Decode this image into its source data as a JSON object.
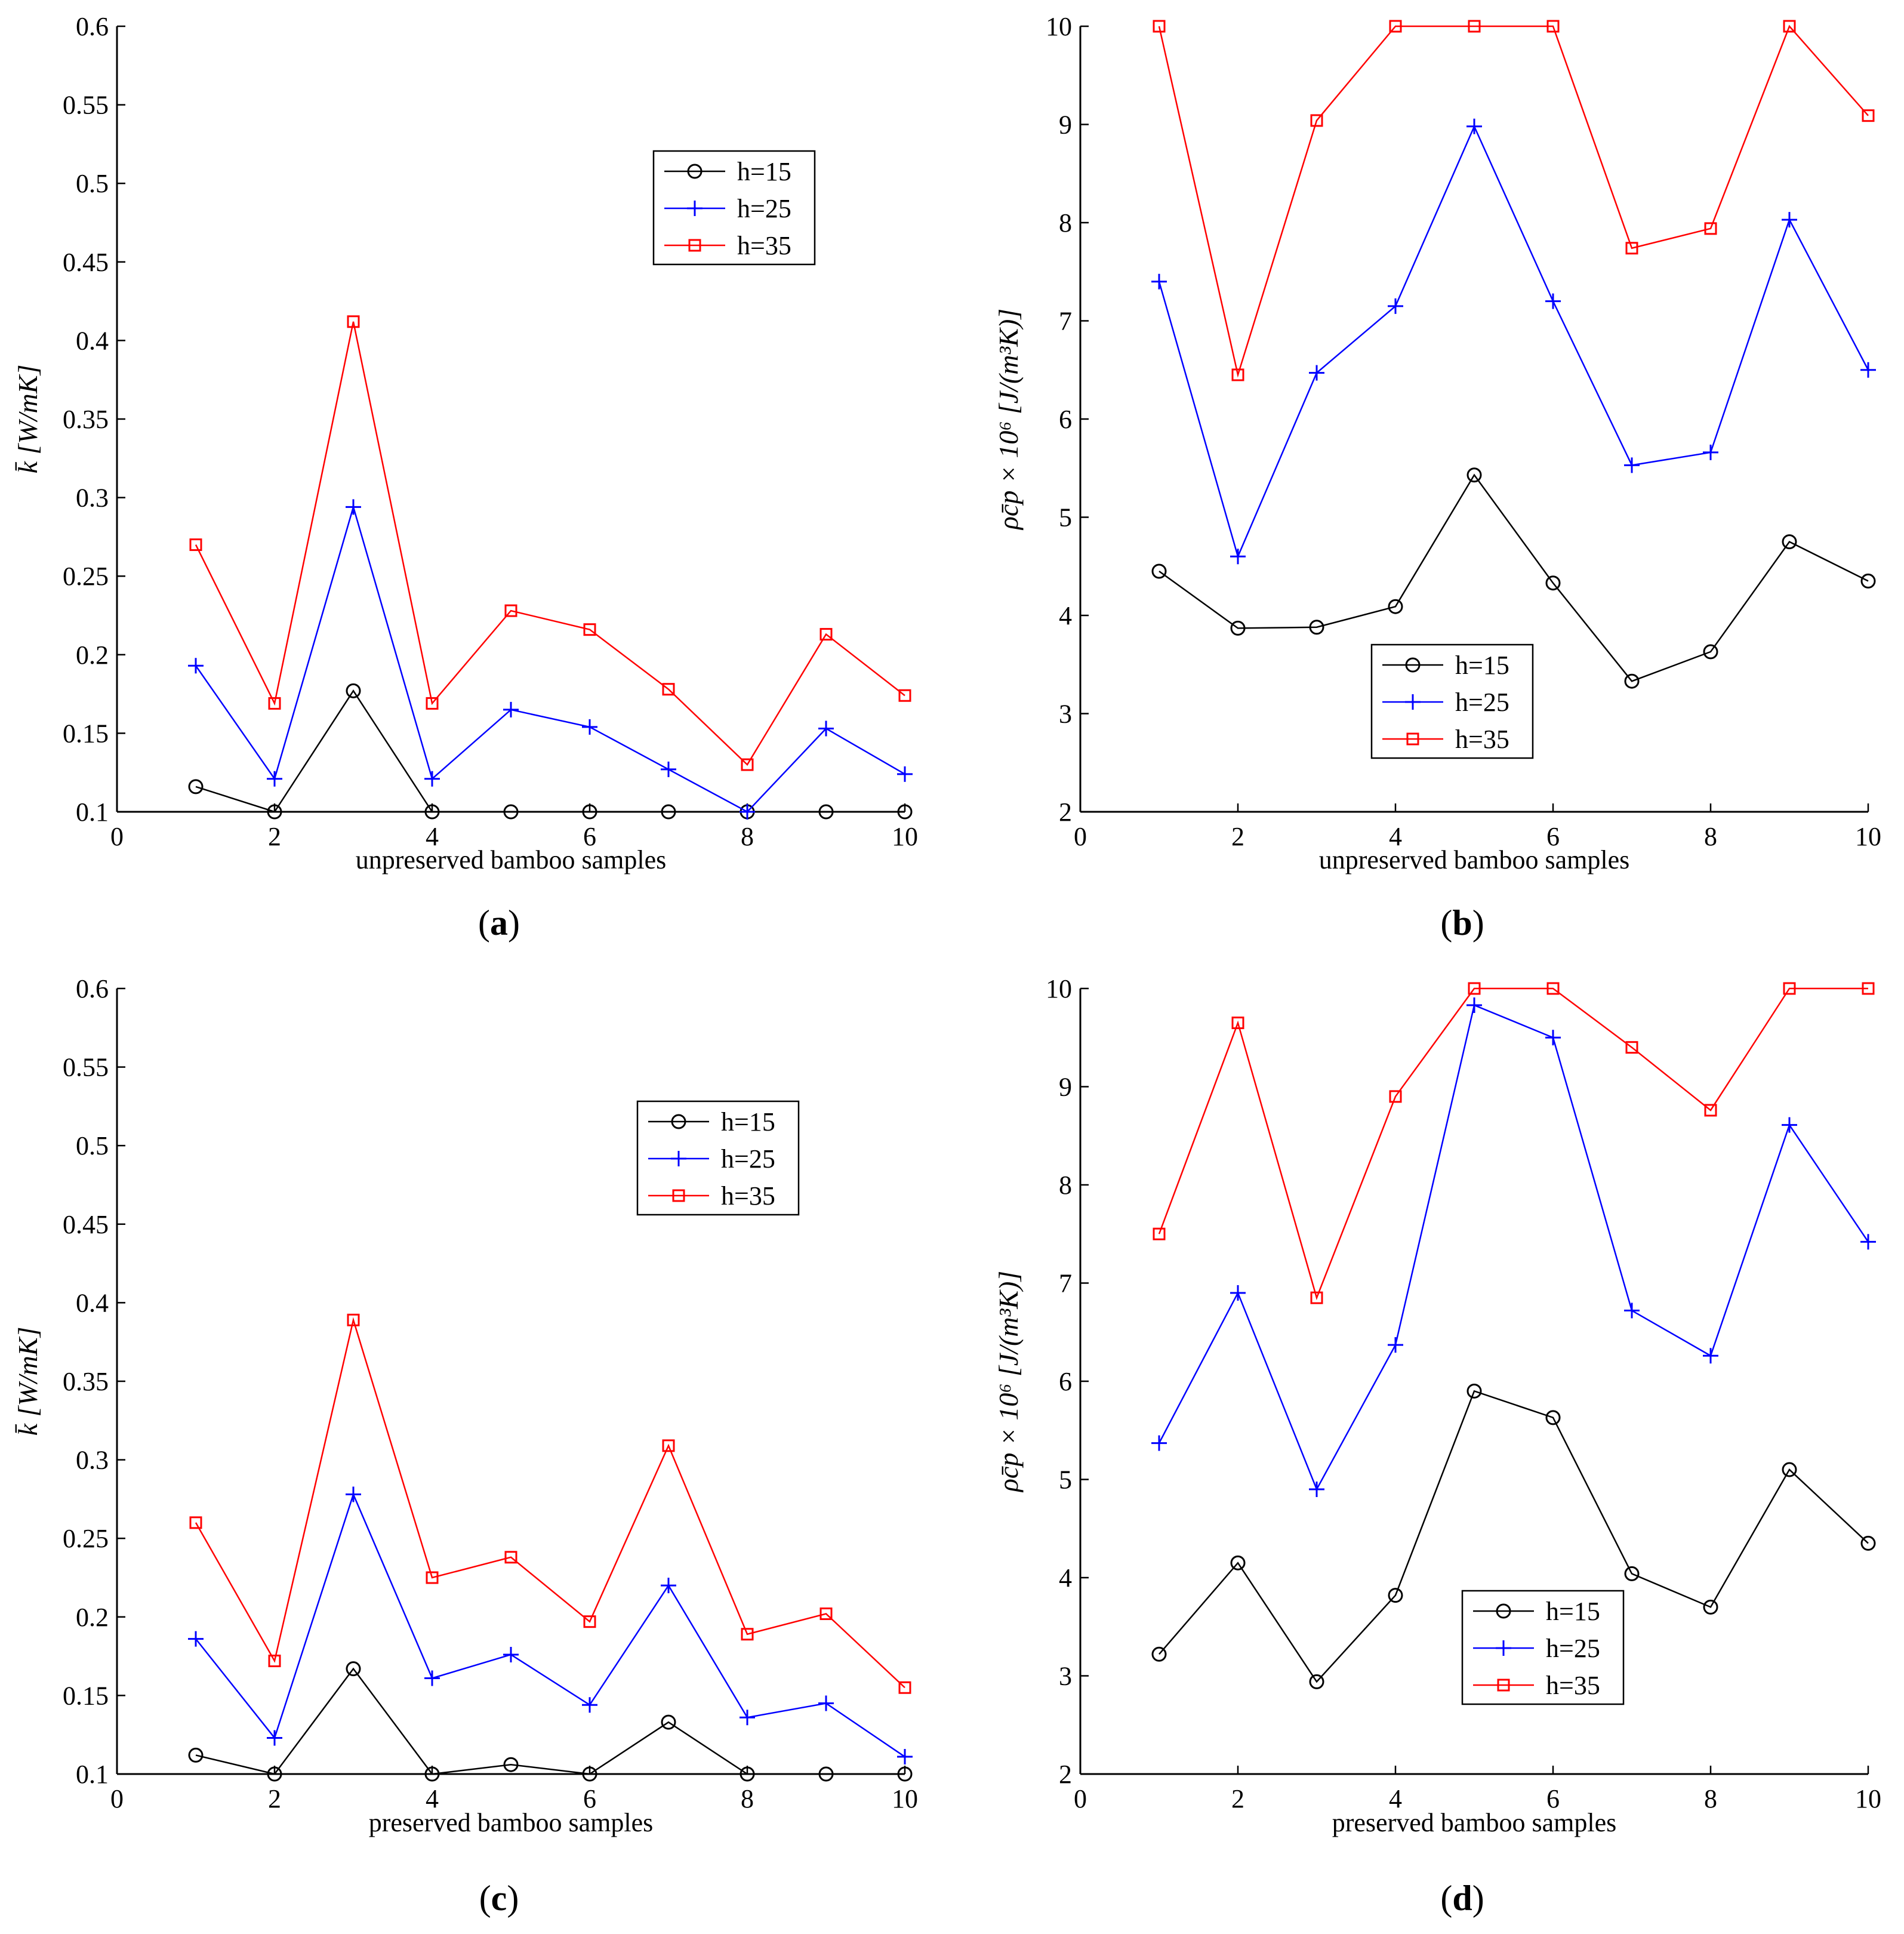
{
  "chart_data": [
    {
      "id": "a",
      "type": "line",
      "panel_label": "a",
      "xlabel": "unpreserved bamboo samples",
      "ylabel": "k̄ [W/mK]",
      "xlim": [
        0,
        10
      ],
      "ylim": [
        0.1,
        0.6
      ],
      "xticks": [
        0,
        2,
        4,
        6,
        8,
        10
      ],
      "yticks": [
        0.1,
        0.15,
        0.2,
        0.25,
        0.3,
        0.35,
        0.4,
        0.45,
        0.5,
        0.55,
        0.6
      ],
      "x": [
        1,
        2,
        3,
        4,
        5,
        6,
        7,
        8,
        9,
        10
      ],
      "legend_position": "upper-right",
      "series": [
        {
          "name": "h=15",
          "color": "#000000",
          "marker": "circle",
          "values": [
            0.116,
            0.1,
            0.177,
            0.1,
            0.1,
            0.1,
            0.1,
            0.1,
            0.1,
            0.1
          ]
        },
        {
          "name": "h=25",
          "color": "#0000ff",
          "marker": "plus",
          "values": [
            0.193,
            0.121,
            0.294,
            0.121,
            0.165,
            0.154,
            0.127,
            0.1,
            0.153,
            0.124
          ]
        },
        {
          "name": "h=35",
          "color": "#ff0000",
          "marker": "square",
          "values": [
            0.27,
            0.169,
            0.412,
            0.169,
            0.228,
            0.216,
            0.178,
            0.13,
            0.213,
            0.174
          ]
        }
      ]
    },
    {
      "id": "b",
      "type": "line",
      "panel_label": "b",
      "xlabel": "unpreserved bamboo samples",
      "ylabel": "ρc̄p × 10⁶ [J/(m³K)]",
      "xlim": [
        0,
        10
      ],
      "ylim": [
        2,
        10
      ],
      "xticks": [
        0,
        2,
        4,
        6,
        8,
        10
      ],
      "yticks": [
        2,
        3,
        4,
        5,
        6,
        7,
        8,
        9,
        10
      ],
      "x": [
        1,
        2,
        3,
        4,
        5,
        6,
        7,
        8,
        9,
        10
      ],
      "legend_position": "lower-middle",
      "series": [
        {
          "name": "h=15",
          "color": "#000000",
          "marker": "circle",
          "values": [
            4.45,
            3.87,
            3.88,
            4.09,
            5.43,
            4.33,
            3.33,
            3.63,
            4.75,
            4.35
          ]
        },
        {
          "name": "h=25",
          "color": "#0000ff",
          "marker": "plus",
          "values": [
            7.4,
            4.6,
            6.47,
            7.15,
            8.98,
            7.2,
            5.53,
            5.66,
            8.03,
            6.5
          ]
        },
        {
          "name": "h=35",
          "color": "#ff0000",
          "marker": "square",
          "values": [
            10,
            6.45,
            9.04,
            10,
            10,
            10,
            7.74,
            7.94,
            10,
            9.09
          ]
        }
      ]
    },
    {
      "id": "c",
      "type": "line",
      "panel_label": "c",
      "xlabel": "preserved bamboo samples",
      "ylabel": "k̄ [W/mK]",
      "xlim": [
        0,
        10
      ],
      "ylim": [
        0.1,
        0.6
      ],
      "xticks": [
        0,
        2,
        4,
        6,
        8,
        10
      ],
      "yticks": [
        0.1,
        0.15,
        0.2,
        0.25,
        0.3,
        0.35,
        0.4,
        0.45,
        0.5,
        0.55,
        0.6
      ],
      "x": [
        1,
        2,
        3,
        4,
        5,
        6,
        7,
        8,
        9,
        10
      ],
      "legend_position": "upper-right",
      "series": [
        {
          "name": "h=15",
          "color": "#000000",
          "marker": "circle",
          "values": [
            0.112,
            0.1,
            0.167,
            0.1,
            0.106,
            0.1,
            0.133,
            0.1,
            0.1,
            0.1
          ]
        },
        {
          "name": "h=25",
          "color": "#0000ff",
          "marker": "plus",
          "values": [
            0.186,
            0.123,
            0.278,
            0.161,
            0.176,
            0.144,
            0.22,
            0.136,
            0.145,
            0.111
          ]
        },
        {
          "name": "h=35",
          "color": "#ff0000",
          "marker": "square",
          "values": [
            0.26,
            0.172,
            0.389,
            0.225,
            0.238,
            0.197,
            0.309,
            0.189,
            0.202,
            0.155
          ]
        }
      ]
    },
    {
      "id": "d",
      "type": "line",
      "panel_label": "d",
      "xlabel": "preserved bamboo samples",
      "ylabel": "ρc̄p × 10⁶ [J/(m³K)]",
      "xlim": [
        0,
        10
      ],
      "ylim": [
        2,
        10
      ],
      "xticks": [
        0,
        2,
        4,
        6,
        8,
        10
      ],
      "yticks": [
        2,
        3,
        4,
        5,
        6,
        7,
        8,
        9,
        10
      ],
      "x": [
        1,
        2,
        3,
        4,
        5,
        6,
        7,
        8,
        9,
        10
      ],
      "legend_position": "lower-right",
      "series": [
        {
          "name": "h=15",
          "color": "#000000",
          "marker": "circle",
          "values": [
            3.22,
            4.15,
            2.94,
            3.82,
            5.9,
            5.63,
            4.04,
            3.7,
            5.1,
            4.35
          ]
        },
        {
          "name": "h=25",
          "color": "#0000ff",
          "marker": "plus",
          "values": [
            5.37,
            6.9,
            4.9,
            6.37,
            9.83,
            9.5,
            6.72,
            6.26,
            8.61,
            7.42
          ]
        },
        {
          "name": "h=35",
          "color": "#ff0000",
          "marker": "square",
          "values": [
            7.5,
            9.65,
            6.85,
            8.9,
            10,
            10,
            9.4,
            8.76,
            10,
            10
          ]
        }
      ]
    }
  ]
}
